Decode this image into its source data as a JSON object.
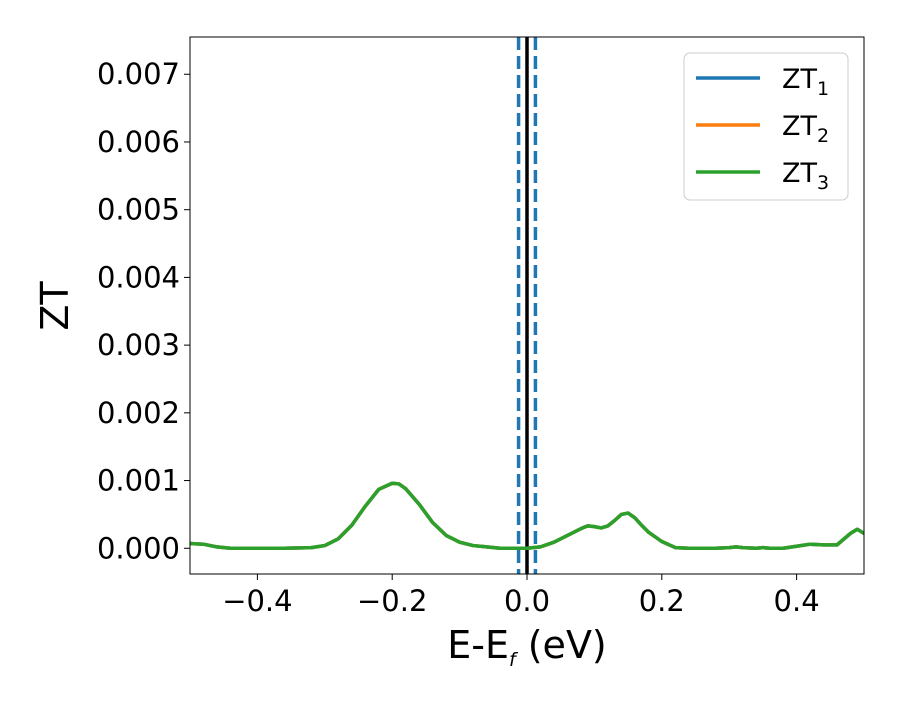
{
  "chart_data": {
    "type": "line",
    "title": "",
    "xlabel": "E-E",
    "xlabel_sub": "f",
    "xlabel_unit": " (eV)",
    "ylabel": "ZT",
    "xlim": [
      -0.5,
      0.5
    ],
    "ylim": [
      -0.00038,
      0.00755
    ],
    "x_ticks": [
      -0.4,
      -0.2,
      0.0,
      0.2,
      0.4
    ],
    "x_tick_labels": [
      "−0.4",
      "−0.2",
      "0.0",
      "0.2",
      "0.4"
    ],
    "y_ticks": [
      0.0,
      0.001,
      0.002,
      0.003,
      0.004,
      0.005,
      0.006,
      0.007
    ],
    "y_tick_labels": [
      "0.000",
      "0.001",
      "0.002",
      "0.003",
      "0.004",
      "0.005",
      "0.006",
      "0.007"
    ],
    "grid": false,
    "legend_position": "top-right",
    "vertical_lines": [
      {
        "x": -0.0125,
        "style": "dashed",
        "color": "#1f77b4"
      },
      {
        "x": 0.0125,
        "style": "dashed",
        "color": "#1f77b4"
      },
      {
        "x": 0.0,
        "style": "solid",
        "color": "#000000"
      }
    ],
    "series": [
      {
        "name": "ZT",
        "sub": "1",
        "color": "#1f77b4",
        "x": [
          -0.5,
          -0.48,
          -0.46,
          -0.44,
          -0.42,
          -0.4,
          -0.36,
          -0.32,
          -0.3,
          -0.28,
          -0.26,
          -0.24,
          -0.22,
          -0.2,
          -0.19,
          -0.18,
          -0.16,
          -0.14,
          -0.12,
          -0.1,
          -0.08,
          -0.06,
          -0.04,
          -0.02,
          0.0,
          0.02,
          0.04,
          0.06,
          0.08,
          0.09,
          0.1,
          0.11,
          0.12,
          0.13,
          0.14,
          0.15,
          0.16,
          0.17,
          0.18,
          0.2,
          0.22,
          0.24,
          0.26,
          0.28,
          0.3,
          0.31,
          0.32,
          0.34,
          0.35,
          0.36,
          0.38,
          0.4,
          0.42,
          0.44,
          0.46,
          0.48,
          0.49,
          0.5
        ],
        "y": [
          7e-05,
          6e-05,
          2e-05,
          0.0,
          0.0,
          0.0,
          0.0,
          1e-05,
          4e-05,
          0.00014,
          0.00034,
          0.00062,
          0.00087,
          0.00096,
          0.00095,
          0.00088,
          0.00065,
          0.00038,
          0.00019,
          9e-05,
          4e-05,
          2e-05,
          0.0,
          0.0,
          0.0,
          2e-05,
          9e-05,
          0.00019,
          0.00029,
          0.00033,
          0.00032,
          0.0003,
          0.00033,
          0.00041,
          0.0005,
          0.00052,
          0.00045,
          0.00034,
          0.00024,
          0.0001,
          1e-05,
          0.0,
          0.0,
          0.0,
          1e-05,
          2e-05,
          1e-05,
          0.0,
          1e-05,
          0.0,
          0.0,
          3e-05,
          6e-05,
          5e-05,
          5e-05,
          0.00022,
          0.00028,
          0.00022
        ]
      },
      {
        "name": "ZT",
        "sub": "2",
        "color": "#ff7f0e",
        "x": [
          -0.5,
          -0.48,
          -0.46,
          -0.44,
          -0.42,
          -0.4,
          -0.36,
          -0.32,
          -0.3,
          -0.28,
          -0.26,
          -0.24,
          -0.22,
          -0.2,
          -0.19,
          -0.18,
          -0.16,
          -0.14,
          -0.12,
          -0.1,
          -0.08,
          -0.06,
          -0.04,
          -0.02,
          0.0,
          0.02,
          0.04,
          0.06,
          0.08,
          0.09,
          0.1,
          0.11,
          0.12,
          0.13,
          0.14,
          0.15,
          0.16,
          0.17,
          0.18,
          0.2,
          0.22,
          0.24,
          0.26,
          0.28,
          0.3,
          0.31,
          0.32,
          0.34,
          0.35,
          0.36,
          0.38,
          0.4,
          0.42,
          0.44,
          0.46,
          0.48,
          0.49,
          0.5
        ],
        "y": [
          7e-05,
          6e-05,
          2e-05,
          0.0,
          0.0,
          0.0,
          0.0,
          1e-05,
          4e-05,
          0.00014,
          0.00034,
          0.00062,
          0.00087,
          0.00096,
          0.00095,
          0.00088,
          0.00065,
          0.00038,
          0.00019,
          9e-05,
          4e-05,
          2e-05,
          0.0,
          0.0,
          0.0,
          2e-05,
          9e-05,
          0.00019,
          0.00029,
          0.00033,
          0.00032,
          0.0003,
          0.00033,
          0.00041,
          0.0005,
          0.00052,
          0.00045,
          0.00034,
          0.00024,
          0.0001,
          1e-05,
          0.0,
          0.0,
          0.0,
          1e-05,
          2e-05,
          1e-05,
          0.0,
          1e-05,
          0.0,
          0.0,
          3e-05,
          6e-05,
          5e-05,
          5e-05,
          0.00022,
          0.00028,
          0.00022
        ]
      },
      {
        "name": "ZT",
        "sub": "3",
        "color": "#2ca02c",
        "x": [
          -0.5,
          -0.48,
          -0.46,
          -0.44,
          -0.42,
          -0.4,
          -0.36,
          -0.32,
          -0.3,
          -0.28,
          -0.26,
          -0.24,
          -0.22,
          -0.2,
          -0.19,
          -0.18,
          -0.16,
          -0.14,
          -0.12,
          -0.1,
          -0.08,
          -0.06,
          -0.04,
          -0.02,
          0.0,
          0.02,
          0.04,
          0.06,
          0.08,
          0.09,
          0.1,
          0.11,
          0.12,
          0.13,
          0.14,
          0.15,
          0.16,
          0.17,
          0.18,
          0.2,
          0.22,
          0.24,
          0.26,
          0.28,
          0.3,
          0.31,
          0.32,
          0.34,
          0.35,
          0.36,
          0.38,
          0.4,
          0.42,
          0.44,
          0.46,
          0.48,
          0.49,
          0.5
        ],
        "y": [
          7e-05,
          6e-05,
          2e-05,
          0.0,
          0.0,
          0.0,
          0.0,
          1e-05,
          4e-05,
          0.00014,
          0.00034,
          0.00062,
          0.00087,
          0.00096,
          0.00095,
          0.00088,
          0.00065,
          0.00038,
          0.00019,
          9e-05,
          4e-05,
          2e-05,
          0.0,
          0.0,
          0.0,
          2e-05,
          9e-05,
          0.00019,
          0.00029,
          0.00033,
          0.00032,
          0.0003,
          0.00033,
          0.00041,
          0.0005,
          0.00052,
          0.00045,
          0.00034,
          0.00024,
          0.0001,
          1e-05,
          0.0,
          0.0,
          0.0,
          1e-05,
          2e-05,
          1e-05,
          0.0,
          1e-05,
          0.0,
          0.0,
          3e-05,
          6e-05,
          5e-05,
          5e-05,
          0.00022,
          0.00028,
          0.00022
        ]
      }
    ]
  }
}
